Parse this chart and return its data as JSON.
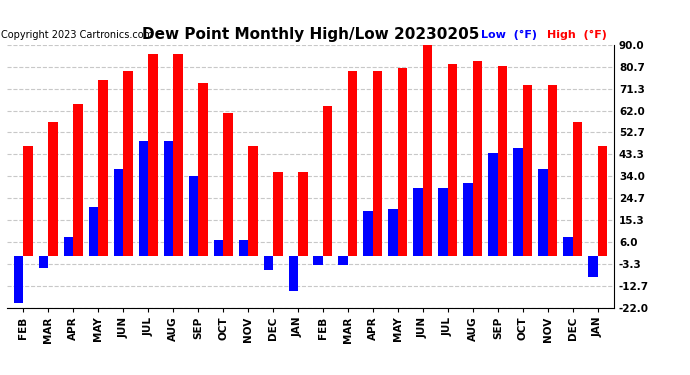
{
  "title": "Dew Point Monthly High/Low 20230205",
  "copyright": "Copyright 2023 Cartronics.com",
  "months": [
    "FEB",
    "MAR",
    "APR",
    "MAY",
    "JUN",
    "JUL",
    "AUG",
    "SEP",
    "OCT",
    "NOV",
    "DEC",
    "JAN",
    "FEB",
    "MAR",
    "APR",
    "MAY",
    "JUN",
    "JUL",
    "AUG",
    "SEP",
    "OCT",
    "NOV",
    "DEC",
    "JAN"
  ],
  "high": [
    47,
    57,
    65,
    75,
    79,
    86,
    86,
    74,
    61,
    47,
    36,
    36,
    64,
    79,
    79,
    80,
    91,
    82,
    83,
    81,
    73,
    73,
    57,
    47
  ],
  "low": [
    -20,
    -5,
    8,
    21,
    37,
    49,
    49,
    34,
    7,
    7,
    -6,
    -15,
    -4,
    -4,
    19,
    20,
    29,
    29,
    31,
    44,
    46,
    37,
    8,
    -9
  ],
  "yticks": [
    90.0,
    80.7,
    71.3,
    62.0,
    52.7,
    43.3,
    34.0,
    24.7,
    15.3,
    6.0,
    -3.3,
    -12.7,
    -22.0
  ],
  "ylim": [
    -22.0,
    90.0
  ],
  "bar_width": 0.38,
  "high_color": "#ff0000",
  "low_color": "#0000ff",
  "bg_color": "#ffffff",
  "grid_color": "#c8c8c8",
  "title_fontsize": 11,
  "copyright_fontsize": 7,
  "tick_fontsize": 7.5,
  "legend_low_label": "Low  (°F)",
  "legend_high_label": "High  (°F)"
}
